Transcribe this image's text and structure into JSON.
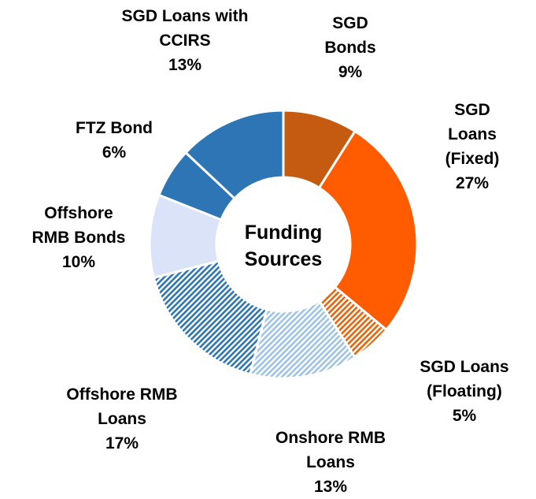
{
  "chart_data": {
    "type": "donut",
    "center_label": "Funding Sources",
    "categories": [
      "SGD Bonds",
      "SGD Loans (Fixed)",
      "SGD Loans (Floating)",
      "Onshore RMB Loans",
      "Offshore RMB Loans",
      "Offshore RMB Bonds",
      "FTZ Bond",
      "SGD Loans with CCIRS"
    ],
    "values": [
      9,
      27,
      5,
      13,
      17,
      10,
      6,
      13
    ],
    "value_labels": [
      "9%",
      "27%",
      "5%",
      "13%",
      "17%",
      "10%",
      "6%",
      "13%"
    ],
    "colors": [
      "#c55a11",
      "#ff5b00",
      "#e8630a",
      "#9dc3e6",
      "#2e75b6",
      "#dae3f8",
      "#2e75b6",
      "#2e75b6"
    ],
    "hatched": [
      false,
      false,
      true,
      true,
      true,
      false,
      false,
      false
    ]
  }
}
